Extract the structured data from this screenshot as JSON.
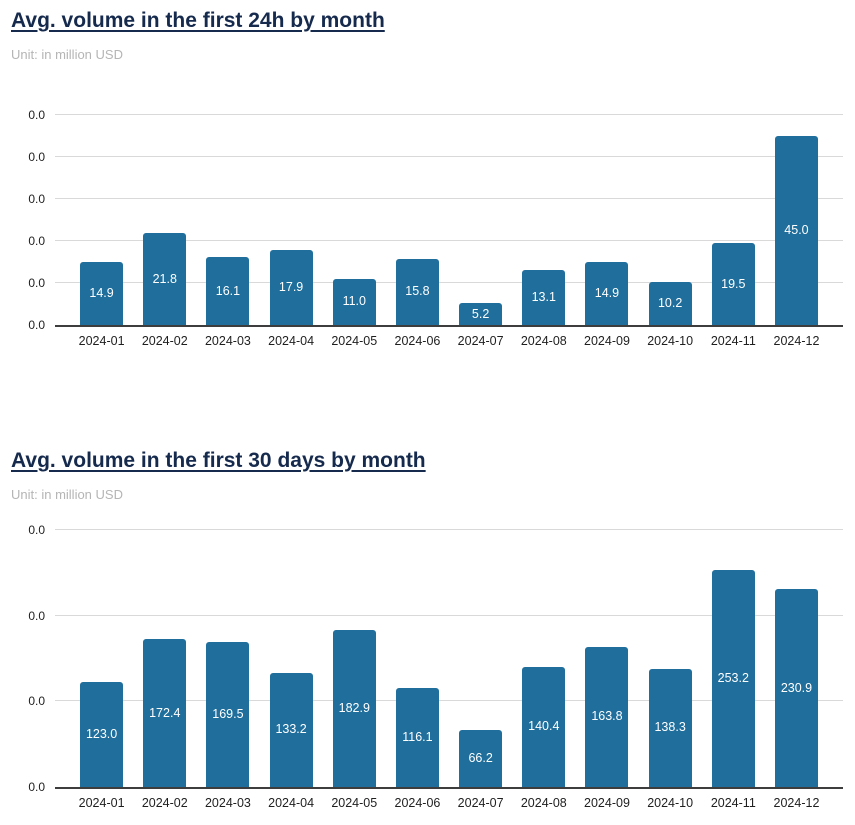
{
  "colors": {
    "bar_fill": "#1f6e9c",
    "title_navy": "#162a4d",
    "subtitle_gray": "#b5b5b5",
    "gridline_gray": "#d9d9d9",
    "axis_dark": "#3d3d3d",
    "bar_label_white": "#ffffff"
  },
  "chart_data": [
    {
      "type": "bar",
      "title": "Avg. volume in the first 24h by month",
      "subtitle": "Unit: in million USD",
      "categories": [
        "2024-01",
        "2024-02",
        "2024-03",
        "2024-04",
        "2024-05",
        "2024-06",
        "2024-07",
        "2024-08",
        "2024-09",
        "2024-10",
        "2024-11",
        "2024-12"
      ],
      "values": [
        14.9,
        21.8,
        16.1,
        17.9,
        11.0,
        15.8,
        5.2,
        13.1,
        14.9,
        10.2,
        19.5,
        45.0
      ],
      "bar_labels": [
        "14.9",
        "21.8",
        "16.1",
        "17.9",
        "11.0",
        "15.8",
        "5.2",
        "13.1",
        "14.9",
        "10.2",
        "19.5",
        "45.0"
      ],
      "xlabel": "",
      "ylabel": "",
      "ylim": [
        0,
        50
      ],
      "y_tick_labels": [
        "0.0",
        "0.0",
        "0.0",
        "0.0",
        "0.0",
        "0.0"
      ],
      "grid": true,
      "legend": false
    },
    {
      "type": "bar",
      "title": "Avg. volume in the first 30 days by month",
      "subtitle": "Unit: in million USD",
      "categories": [
        "2024-01",
        "2024-02",
        "2024-03",
        "2024-04",
        "2024-05",
        "2024-06",
        "2024-07",
        "2024-08",
        "2024-09",
        "2024-10",
        "2024-11",
        "2024-12"
      ],
      "values": [
        123.0,
        172.4,
        169.5,
        133.2,
        182.9,
        116.1,
        66.2,
        140.4,
        163.8,
        138.3,
        253.2,
        230.9
      ],
      "bar_labels": [
        "123.0",
        "172.4",
        "169.5",
        "133.2",
        "182.9",
        "116.1",
        "66.2",
        "140.4",
        "163.8",
        "138.3",
        "253.2",
        "230.9"
      ],
      "xlabel": "",
      "ylabel": "",
      "ylim": [
        0,
        300
      ],
      "y_tick_labels": [
        "0.0",
        "0.0",
        "0.0",
        "0.0"
      ],
      "grid": true,
      "legend": false
    }
  ]
}
